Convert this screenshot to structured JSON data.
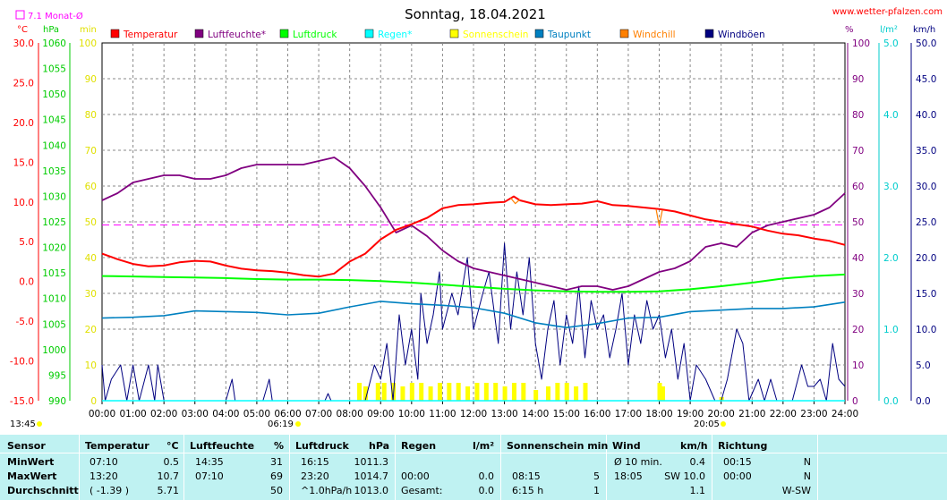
{
  "chart_data": {
    "type": "line",
    "title": "Sonntag, 18.04.2021",
    "source_label": "www.wetter-pfalzen.com",
    "month_avg_label": "7.1 Monat-Ø",
    "start_time_label": "13:45",
    "sunrise_label": "06:19",
    "sunset_label": "20:05",
    "x_ticks": [
      "00:00",
      "01:00",
      "02:00",
      "03:00",
      "04:00",
      "05:00",
      "06:00",
      "07:00",
      "08:00",
      "09:00",
      "10:00",
      "11:00",
      "12:00",
      "13:00",
      "14:00",
      "15:00",
      "16:00",
      "17:00",
      "18:00",
      "19:00",
      "20:00",
      "21:00",
      "22:00",
      "23:00",
      "24:00"
    ],
    "axes": {
      "temperature": {
        "unit": "°C",
        "range": [
          -15,
          30
        ],
        "ticks": [
          "30.0",
          "25.0",
          "20.0",
          "15.0",
          "10.0",
          "5.0",
          "0.0",
          "-5.0",
          "-10.0",
          "-15.0"
        ],
        "color": "#ff0000"
      },
      "pressure": {
        "unit": "hPa",
        "range": [
          990,
          1060
        ],
        "ticks": [
          "1060",
          "1055",
          "1050",
          "1045",
          "1040",
          "1035",
          "1030",
          "1025",
          "1020",
          "1015",
          "1010",
          "1005",
          "1000",
          "995",
          "990"
        ],
        "color": "#00cc00"
      },
      "sunshine": {
        "unit": "min",
        "range": [
          0,
          100
        ],
        "ticks": [
          "100",
          "90",
          "80",
          "70",
          "60",
          "50",
          "40",
          "30",
          "20",
          "10",
          "0"
        ],
        "color": "#ffff00"
      },
      "humidity": {
        "unit": "%",
        "range": [
          0,
          100
        ],
        "ticks": [
          "100",
          "90",
          "80",
          "70",
          "60",
          "50",
          "40",
          "30",
          "20",
          "10",
          "0"
        ],
        "color": "#800080"
      },
      "rain": {
        "unit": "l/m²",
        "range": [
          0,
          5
        ],
        "ticks": [
          "5.0",
          "4.0",
          "3.0",
          "2.0",
          "1.0",
          "0.0"
        ],
        "color": "#00cccc"
      },
      "wind": {
        "unit": "km/h",
        "range": [
          0,
          50
        ],
        "ticks": [
          "50.0",
          "45.0",
          "40.0",
          "35.0",
          "30.0",
          "25.0",
          "20.0",
          "15.0",
          "10.0",
          "5.0",
          "0.0"
        ],
        "color": "#000080"
      }
    },
    "legend": [
      {
        "name": "Temperatur",
        "color": "#ff0000"
      },
      {
        "name": "Luftfeuchte*",
        "color": "#800080"
      },
      {
        "name": "Luftdruck",
        "color": "#00ff00"
      },
      {
        "name": "Regen*",
        "color": "#00ffff"
      },
      {
        "name": "Sonnenschein",
        "color": "#ffff00"
      },
      {
        "name": "Taupunkt",
        "color": "#0080c0"
      },
      {
        "name": "Windchill",
        "color": "#ff8000"
      },
      {
        "name": "Windböen",
        "color": "#000080"
      }
    ],
    "month_avg_temperature": 7.1,
    "series": [
      {
        "name": "Temperatur",
        "axis": "temperature",
        "color": "#ff0000",
        "x": [
          0,
          0.5,
          1,
          1.5,
          2,
          2.5,
          3,
          3.5,
          4,
          4.5,
          5,
          5.5,
          6,
          6.5,
          7,
          7.5,
          8,
          8.5,
          9,
          9.5,
          10,
          10.5,
          11,
          11.5,
          12,
          12.5,
          13,
          13.3,
          13.5,
          14,
          14.5,
          15,
          15.5,
          16,
          16.5,
          17,
          17.5,
          18,
          18.5,
          19,
          19.5,
          20,
          20.5,
          21,
          21.5,
          22,
          22.5,
          23,
          23.5,
          24
        ],
        "y": [
          3.5,
          2.8,
          2.2,
          1.9,
          2.0,
          2.4,
          2.6,
          2.5,
          2.0,
          1.6,
          1.4,
          1.3,
          1.1,
          0.8,
          0.6,
          1.0,
          2.5,
          3.5,
          5.3,
          6.5,
          7.2,
          8.0,
          9.2,
          9.6,
          9.7,
          9.9,
          10.0,
          10.7,
          10.2,
          9.7,
          9.6,
          9.7,
          9.8,
          10.1,
          9.6,
          9.5,
          9.3,
          9.1,
          8.8,
          8.3,
          7.8,
          7.5,
          7.2,
          6.9,
          6.4,
          6.0,
          5.8,
          5.4,
          5.1,
          4.6
        ]
      },
      {
        "name": "Luftfeuchte*",
        "axis": "humidity",
        "color": "#800080",
        "x": [
          0,
          0.5,
          1,
          1.5,
          2,
          2.5,
          3,
          3.5,
          4,
          4.5,
          5,
          5.5,
          6,
          6.5,
          7,
          7.5,
          8,
          8.5,
          9,
          9.5,
          10,
          10.5,
          11,
          11.5,
          12,
          12.5,
          13,
          13.5,
          14,
          14.5,
          15,
          15.5,
          16,
          16.5,
          17,
          17.5,
          18,
          18.5,
          19,
          19.5,
          20,
          20.5,
          21,
          21.5,
          22,
          22.5,
          23,
          23.5,
          24
        ],
        "y": [
          56,
          58,
          61,
          62,
          63,
          63,
          62,
          62,
          63,
          65,
          66,
          66,
          66,
          66,
          67,
          68,
          65,
          60,
          54,
          47,
          49,
          46,
          42,
          39,
          37,
          36,
          35,
          34,
          33,
          32,
          31,
          32,
          32,
          31,
          32,
          34,
          36,
          37,
          39,
          43,
          44,
          43,
          47,
          49,
          50,
          51,
          52,
          54,
          58
        ]
      },
      {
        "name": "Luftdruck",
        "axis": "pressure",
        "color": "#00ff00",
        "x": [
          0,
          1,
          2,
          3,
          4,
          5,
          6,
          7,
          8,
          9,
          10,
          11,
          12,
          13,
          14,
          15,
          16,
          17,
          18,
          19,
          20,
          21,
          22,
          23,
          24
        ],
        "y": [
          1014.4,
          1014.3,
          1014.2,
          1014.1,
          1014.0,
          1013.8,
          1013.7,
          1013.7,
          1013.6,
          1013.4,
          1013.1,
          1012.7,
          1012.3,
          1011.9,
          1011.6,
          1011.4,
          1011.3,
          1011.3,
          1011.4,
          1011.8,
          1012.4,
          1013.1,
          1013.9,
          1014.4,
          1014.7
        ]
      },
      {
        "name": "Regen*",
        "axis": "rain",
        "color": "#00ffff",
        "x": [
          0,
          24
        ],
        "y": [
          0.0,
          0.0
        ]
      },
      {
        "name": "Taupunkt",
        "axis": "temperature",
        "color": "#0080c0",
        "x": [
          0,
          1,
          2,
          3,
          4,
          5,
          6,
          7,
          8,
          9,
          10,
          11,
          12,
          13,
          14,
          15,
          16,
          17,
          18,
          19,
          20,
          21,
          22,
          23,
          24
        ],
        "y": [
          -4.6,
          -4.5,
          -4.3,
          -3.7,
          -3.8,
          -3.9,
          -4.2,
          -4.0,
          -3.2,
          -2.5,
          -2.8,
          -3.0,
          -3.3,
          -4.0,
          -5.2,
          -5.8,
          -5.3,
          -4.6,
          -4.5,
          -3.8,
          -3.6,
          -3.4,
          -3.4,
          -3.2,
          -2.6
        ]
      },
      {
        "name": "Windchill",
        "axis": "temperature",
        "color": "#ff8000",
        "x": [
          13.2,
          13.35,
          13.5,
          17.9,
          18.0,
          18.1
        ],
        "y": [
          10.5,
          9.8,
          10.3,
          9.1,
          7.0,
          9.0
        ]
      },
      {
        "name": "Windböen",
        "axis": "wind",
        "color": "#000080",
        "x": [
          0,
          0.1,
          0.3,
          0.6,
          0.8,
          1.0,
          1.2,
          1.5,
          1.7,
          1.8,
          2.0,
          4.0,
          4.2,
          4.3,
          5.2,
          5.4,
          5.5,
          7.2,
          7.3,
          7.4,
          8.5,
          8.8,
          9.0,
          9.2,
          9.4,
          9.6,
          9.8,
          10.0,
          10.2,
          10.3,
          10.5,
          10.7,
          10.9,
          11.0,
          11.3,
          11.5,
          11.8,
          12.0,
          12.3,
          12.5,
          12.8,
          13.0,
          13.2,
          13.4,
          13.6,
          13.8,
          14.0,
          14.2,
          14.4,
          14.6,
          14.8,
          15.0,
          15.2,
          15.4,
          15.6,
          15.8,
          16.0,
          16.2,
          16.4,
          16.6,
          16.8,
          17.0,
          17.2,
          17.4,
          17.6,
          17.8,
          18.0,
          18.2,
          18.4,
          18.6,
          18.8,
          19.0,
          19.2,
          19.5,
          19.8,
          20.0,
          20.2,
          20.5,
          20.7,
          20.9,
          21.2,
          21.4,
          21.6,
          21.8,
          22.0,
          22.3,
          22.6,
          22.8,
          23.0,
          23.2,
          23.4,
          23.6,
          23.8,
          24.0
        ],
        "y": [
          5,
          0,
          3,
          5,
          0,
          5,
          0,
          5,
          0,
          5,
          0,
          0,
          3,
          0,
          0,
          3,
          0,
          0,
          1,
          0,
          0,
          5,
          3,
          8,
          0,
          12,
          5,
          10,
          3,
          15,
          8,
          12,
          18,
          10,
          15,
          12,
          20,
          10,
          15,
          18,
          8,
          22,
          10,
          18,
          12,
          20,
          8,
          3,
          10,
          14,
          5,
          12,
          8,
          16,
          6,
          14,
          10,
          12,
          6,
          10,
          15,
          5,
          12,
          8,
          14,
          10,
          12,
          6,
          10,
          3,
          8,
          0,
          5,
          3,
          0,
          0,
          3,
          10,
          8,
          0,
          3,
          0,
          3,
          0,
          0,
          0,
          5,
          2,
          2,
          3,
          0,
          8,
          3,
          2
        ]
      },
      {
        "name": "Sonnenschein",
        "axis": "sunshine",
        "color": "#ffff00",
        "x": [
          8.3,
          8.5,
          8.9,
          9.1,
          9.4,
          9.7,
          10,
          10.3,
          10.6,
          10.9,
          11.2,
          11.5,
          11.8,
          12.1,
          12.4,
          12.7,
          13.0,
          13.3,
          13.6,
          14.0,
          14.4,
          14.7,
          15.0,
          15.3,
          15.6,
          18.0,
          18.1,
          20.0
        ],
        "y": [
          5,
          4,
          5,
          5,
          5,
          4,
          5,
          5,
          4,
          5,
          5,
          5,
          4,
          5,
          5,
          5,
          4,
          5,
          5,
          3,
          4,
          5,
          5,
          4,
          5,
          5,
          4,
          1
        ]
      }
    ],
    "grid": true
  },
  "table": {
    "headers": {
      "sensor": "Sensor",
      "temperature": "Temperatur",
      "temperature_unit": "°C",
      "humidity": "Luftfeuchte",
      "humidity_unit": "%",
      "pressure": "Luftdruck",
      "pressure_unit": "hPa",
      "rain": "Regen",
      "rain_unit": "l/m²",
      "sunshine": "Sonnenschein min",
      "wind": "Wind",
      "wind_unit": "km/h",
      "direction": "Richtung"
    },
    "rows": [
      {
        "label": "MinWert",
        "t_time": "07:10",
        "t_val": "0.5",
        "h_time": "14:35",
        "h_val": "31",
        "p_time": "16:15",
        "p_val": "1011.3",
        "r_time": "",
        "r_val": "",
        "s_time": "",
        "s_val": "",
        "w_label": "Ø 10 min.",
        "w_val": "0.4",
        "d_time": "00:15",
        "d_val": "N"
      },
      {
        "label": "MaxWert",
        "t_time": "13:20",
        "t_val": "10.7",
        "h_time": "07:10",
        "h_val": "69",
        "p_time": "23:20",
        "p_val": "1014.7",
        "r_time": "00:00",
        "r_val": "0.0",
        "s_time": "08:15",
        "s_val": "5",
        "w_label": "18:05",
        "w_val": "SW 10.0",
        "d_time": "00:00",
        "d_val": "N"
      },
      {
        "label": "Durchschnitt",
        "t_time": "( -1.39 )",
        "t_val": "5.71",
        "h_time": "",
        "h_val": "50",
        "p_time": "^1.0hPa/h",
        "p_val": "1013.0",
        "r_time": "Gesamt:",
        "r_val": "0.0",
        "s_time": "6:15 h",
        "s_val": "1",
        "w_label": "",
        "w_val": "1.1",
        "d_time": "",
        "d_val": "W-SW"
      }
    ]
  }
}
